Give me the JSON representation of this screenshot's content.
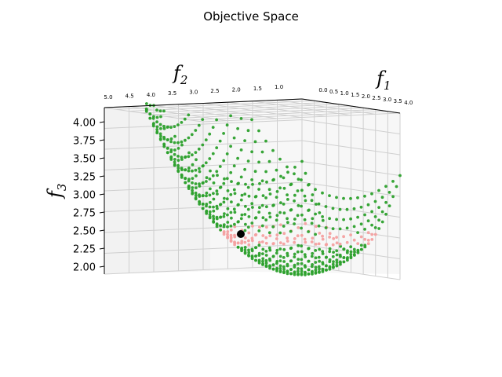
{
  "chart_data": {
    "type": "scatter",
    "projection": "3d",
    "title": "Objective Space",
    "axes": {
      "x": {
        "label": "f",
        "label_sub": "1",
        "ticks": [
          "0.0",
          "0.5",
          "1.0",
          "1.5",
          "2.0",
          "2.5",
          "3.0",
          "3.5",
          "4.0"
        ],
        "range": [
          0,
          4
        ]
      },
      "y": {
        "label": "f",
        "label_sub": "2",
        "ticks": [
          "5.0",
          "4.5",
          "4.0",
          "3.5",
          "3.0",
          "2.5",
          "2.0",
          "1.5",
          "1.0"
        ],
        "range": [
          1,
          5
        ]
      },
      "z": {
        "label": "f",
        "label_sub": "3",
        "ticks": [
          "4.00",
          "3.75",
          "3.50",
          "3.25",
          "3.00",
          "2.75",
          "2.50",
          "2.25",
          "2.00"
        ],
        "range": [
          2,
          4
        ]
      }
    },
    "grid": true,
    "series": [
      {
        "role": "pareto-front",
        "color": "#2ca02c",
        "surface": "f3 = 2 + ((f1-2)^2 + (f2-2)^2)/4",
        "f1_range": [
          0,
          4
        ],
        "f2_range": [
          1,
          5
        ]
      },
      {
        "role": "highlighted-region",
        "color": "#f4a0a0",
        "f3_range": [
          2.25,
          2.55
        ]
      },
      {
        "role": "selected-point",
        "color": "#000000",
        "point": [
          2.0,
          2.0,
          2.45
        ]
      }
    ]
  }
}
